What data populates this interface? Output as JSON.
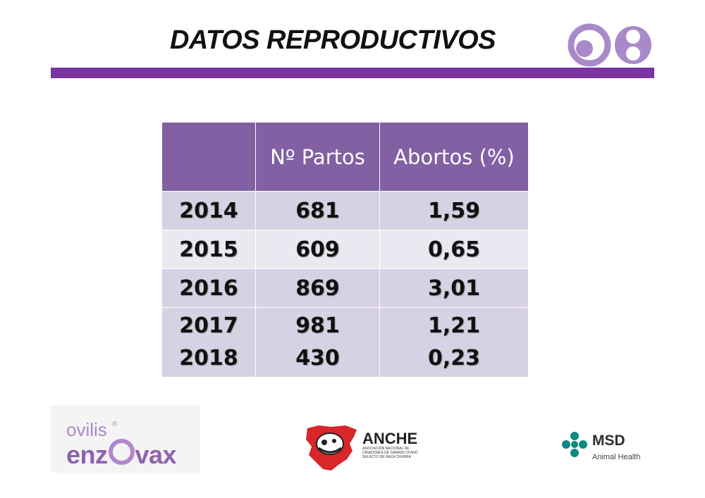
{
  "title": "DATOS REPRODUCTIVOS",
  "colors": {
    "accent": "#7a35a0",
    "header_bg": "#8160a3",
    "row_dark": "#d7d1e4",
    "row_light": "#ebe8f1",
    "logo": "#a98ac8"
  },
  "table": {
    "headers": [
      "",
      "Nº Partos",
      "Abortos (%)"
    ],
    "rows": [
      {
        "year": "2014",
        "partos": "681",
        "abortos": "1,59"
      },
      {
        "year": "2015",
        "partos": "609",
        "abortos": "0,65"
      },
      {
        "year": "2016",
        "partos": "869",
        "abortos": "3,01"
      },
      {
        "year": "2017",
        "partos": "981",
        "abortos": "1,21"
      },
      {
        "year": "2018",
        "partos": "430",
        "abortos": "0,23"
      }
    ]
  },
  "logos": {
    "ovilis": {
      "line1": "ovilis",
      "reg": "®",
      "line2_a": "enz",
      "line2_b": "vax"
    },
    "anche": {
      "name": "ANCHE",
      "subtitle": "ASOCIACIÓN NACIONAL DE CRIADORES DE GANADO OVINO SELECTO DE RAZA CHURRA"
    },
    "msd": {
      "name": "MSD",
      "subtitle": "Animal Health"
    }
  },
  "icons": [
    "logo-08-icon",
    "anche-map-icon",
    "msd-cross-icon"
  ]
}
